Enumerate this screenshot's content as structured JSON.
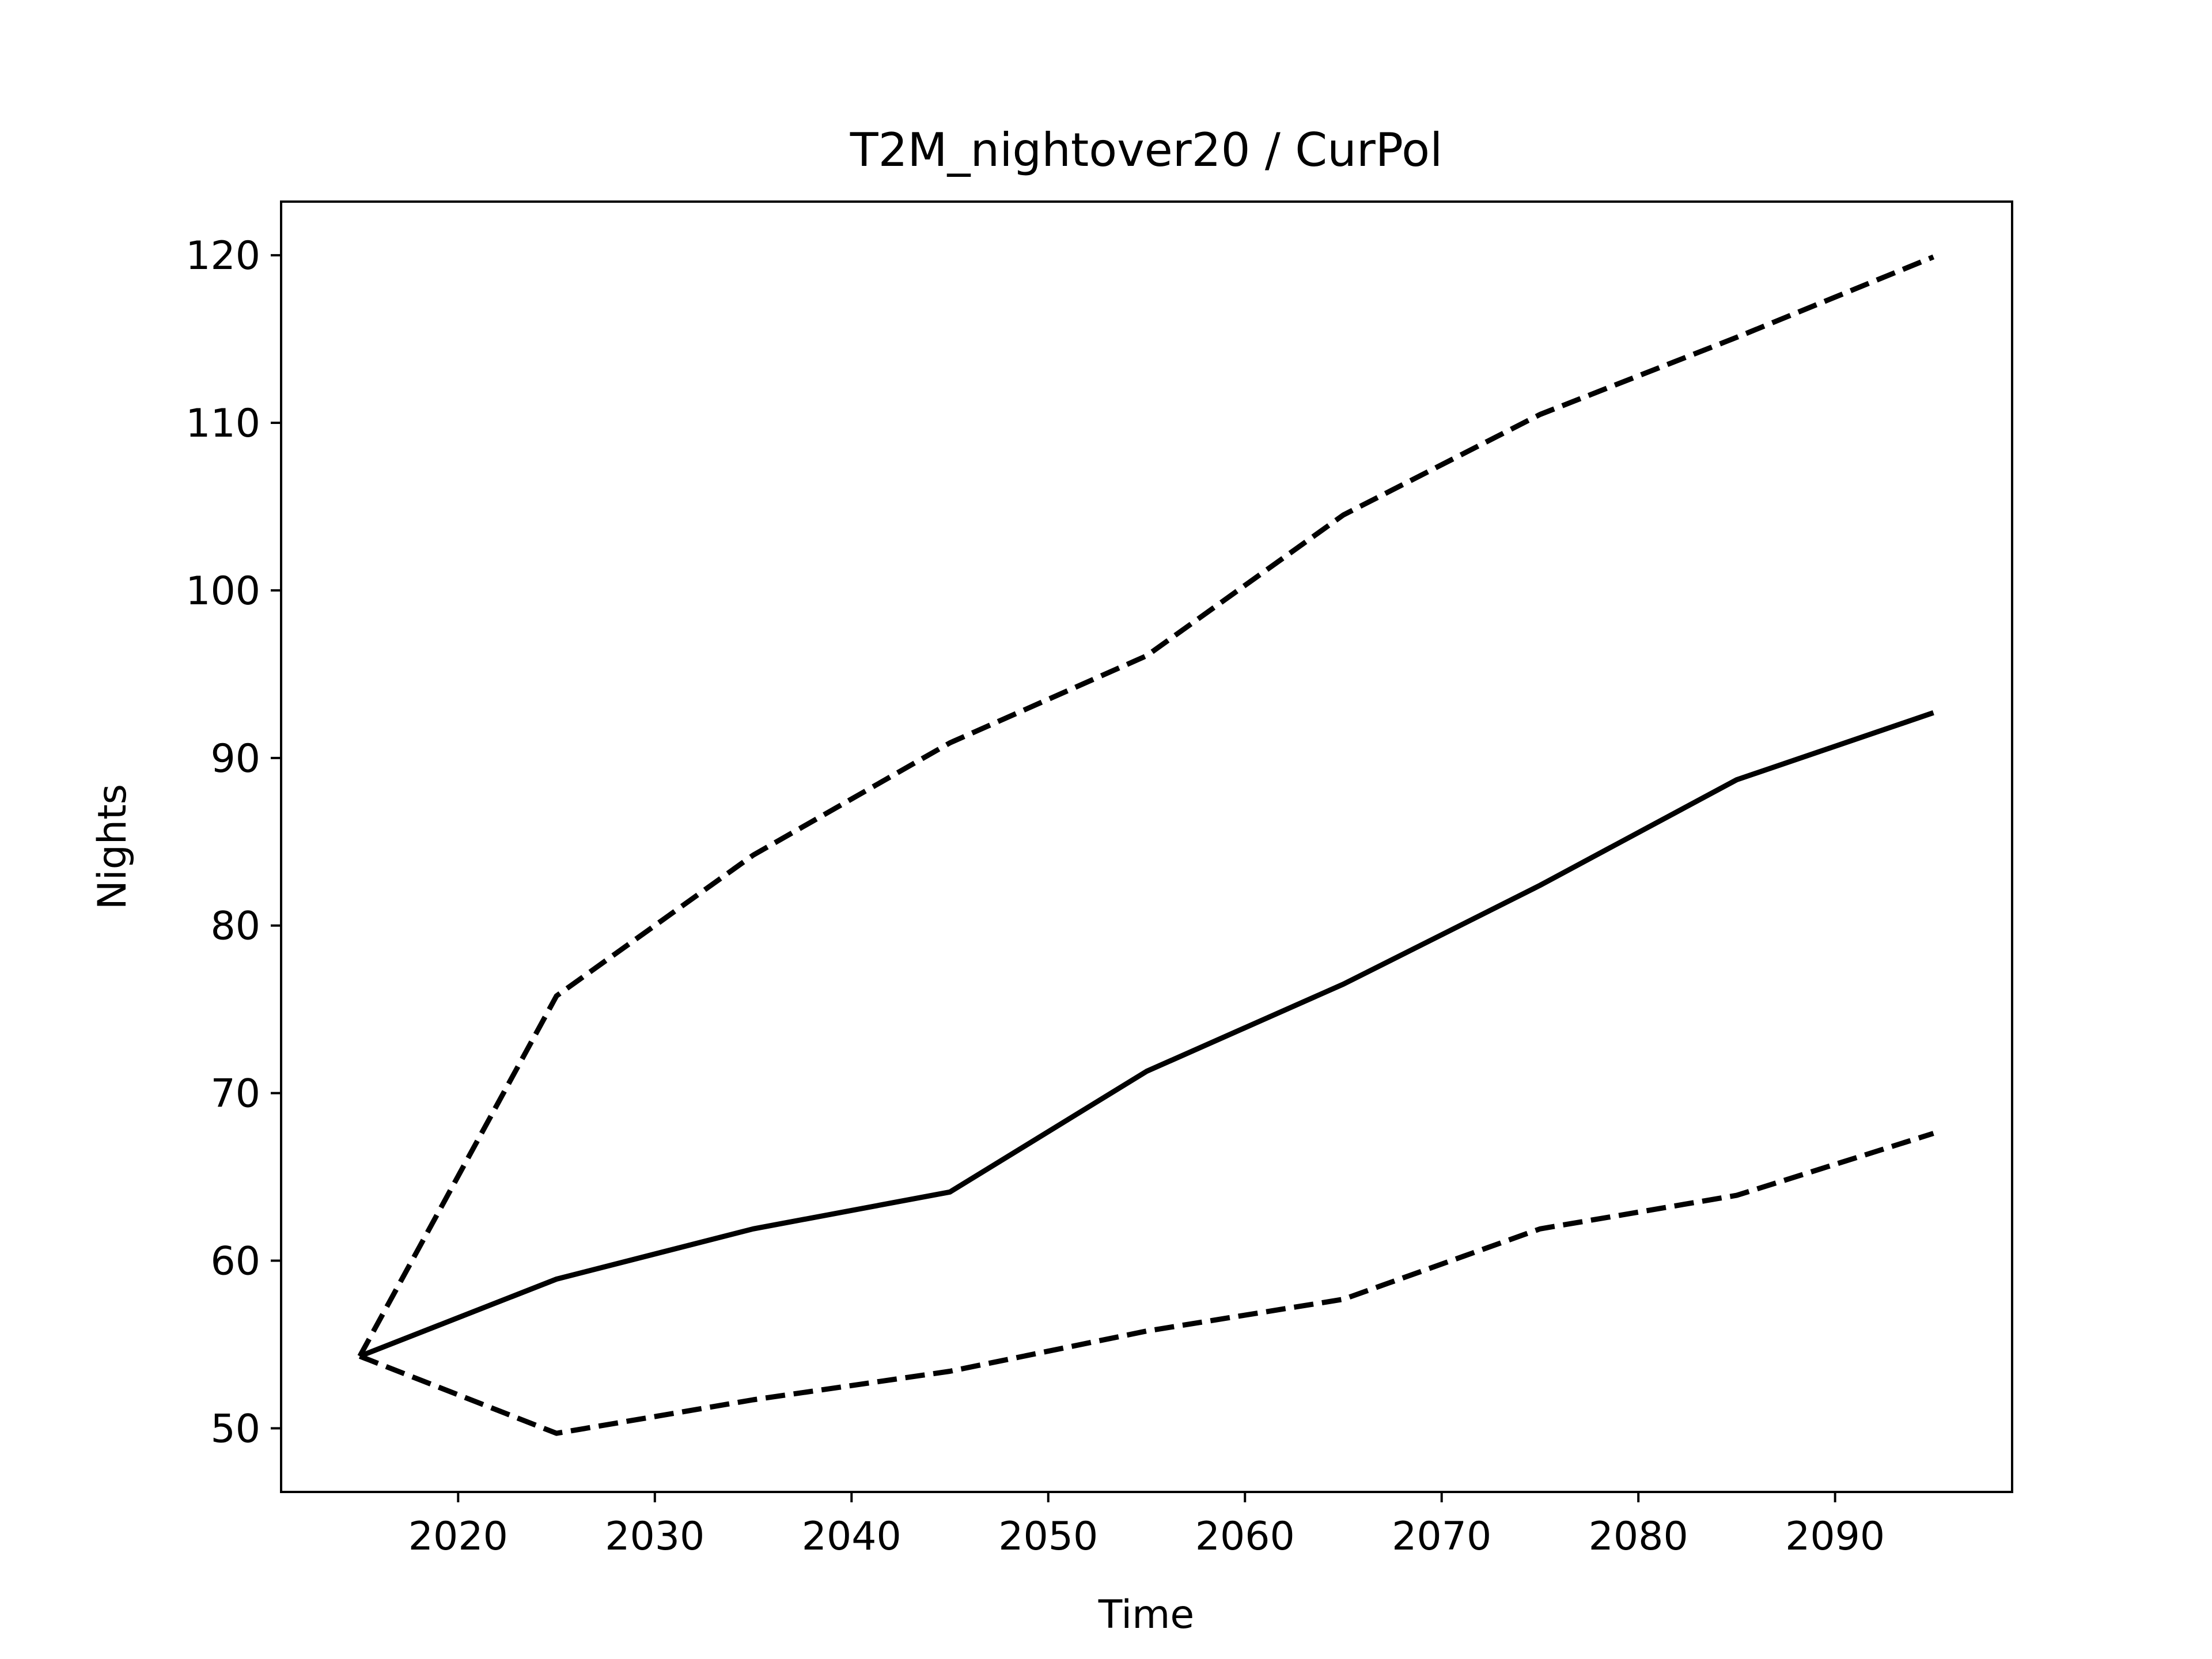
{
  "chart_data": {
    "type": "line",
    "title": "T2M_nightover20 / CurPol",
    "xlabel": "Time",
    "ylabel": "Nights",
    "xlim": [
      2011,
      2099
    ],
    "ylim": [
      46.2,
      123.2
    ],
    "xticks": [
      2020,
      2030,
      2040,
      2050,
      2060,
      2070,
      2080,
      2090
    ],
    "yticks": [
      50,
      60,
      70,
      80,
      90,
      100,
      110,
      120
    ],
    "xtick_labels": [
      "2020",
      "2030",
      "2040",
      "2050",
      "2060",
      "2070",
      "2080",
      "2090"
    ],
    "ytick_labels": [
      "50",
      "60",
      "70",
      "80",
      "90",
      "100",
      "110",
      "120"
    ],
    "grid": false,
    "legend": "none",
    "x": [
      2015,
      2025,
      2035,
      2045,
      2055,
      2065,
      2075,
      2085,
      2095
    ],
    "series": [
      {
        "style": "solid",
        "color": "#000000",
        "values": [
          54.3,
          58.9,
          61.9,
          64.1,
          71.3,
          76.5,
          82.4,
          88.7,
          92.7
        ]
      },
      {
        "style": "dashed",
        "color": "#000000",
        "values": [
          54.3,
          75.8,
          84.2,
          90.9,
          96.1,
          104.5,
          110.5,
          115.1,
          119.9
        ]
      },
      {
        "style": "dashed",
        "color": "#000000",
        "values": [
          54.3,
          49.7,
          51.7,
          53.4,
          55.8,
          57.7,
          61.9,
          63.9,
          67.6
        ]
      }
    ]
  }
}
